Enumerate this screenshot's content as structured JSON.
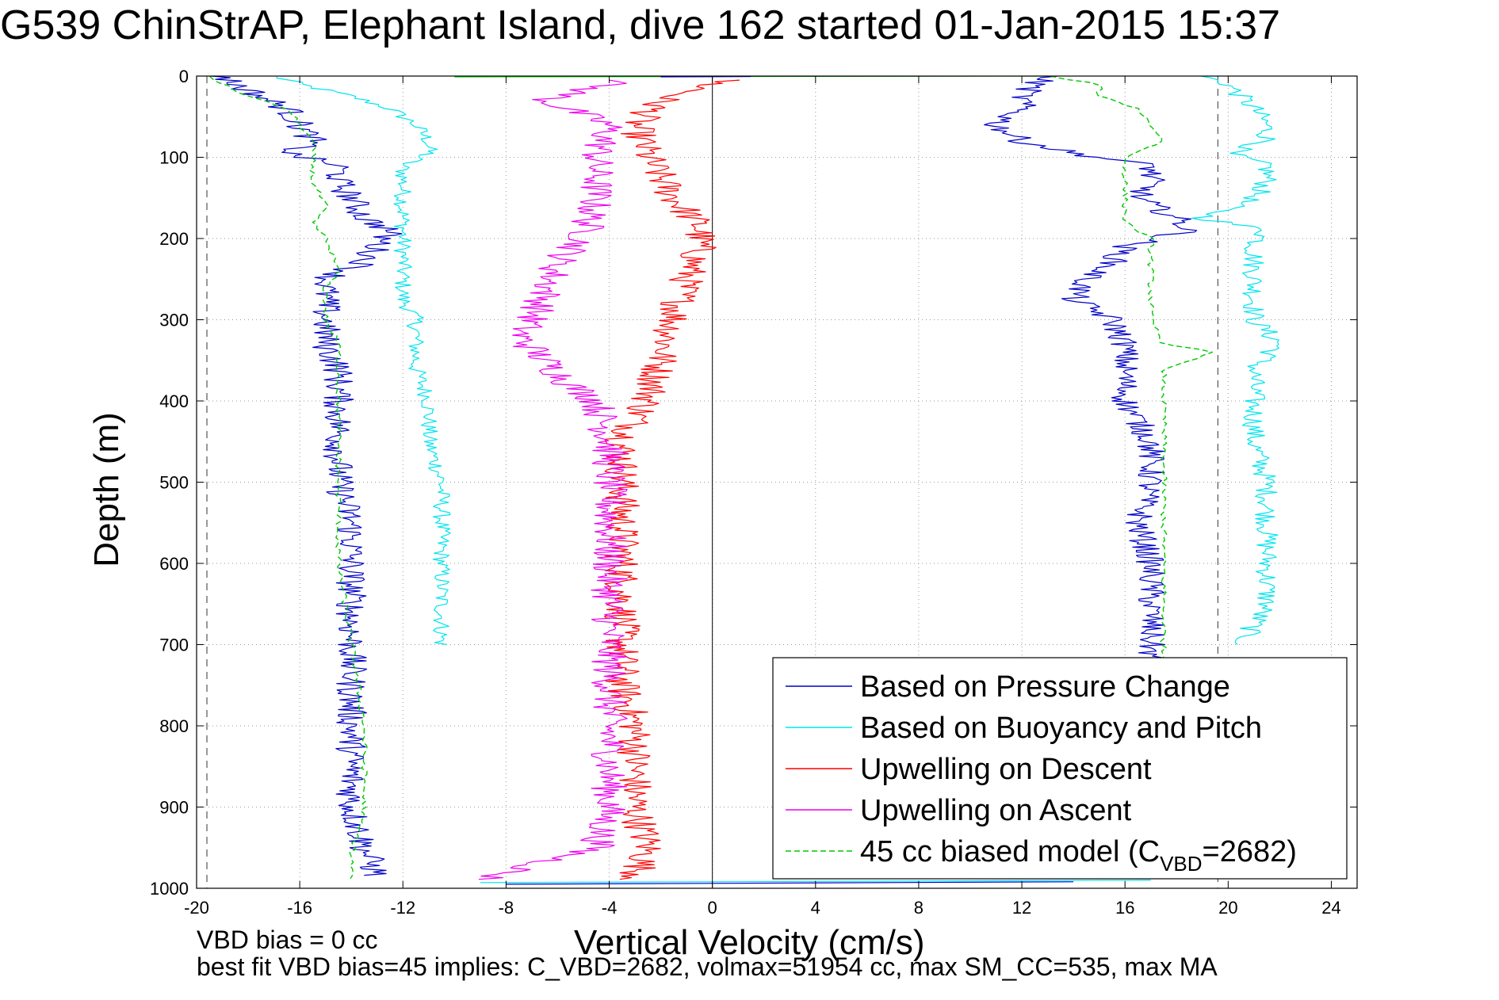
{
  "title": "G539 ChinStrAP, Elephant Island, dive 162 started 01-Jan-2015 15:37",
  "footnotes": {
    "line1": "VBD bias = 0 cc",
    "line2": "best fit VBD bias=45 implies: C_VBD=2682, volmax=51954 cc, max SM_CC=535, max MA"
  },
  "chart_data": {
    "type": "line",
    "xlabel": "Vertical Velocity (cm/s)",
    "ylabel": "Depth (m)",
    "xlim": [
      -20,
      25
    ],
    "ylim": [
      1000,
      0
    ],
    "y_reversed": true,
    "xticks": [
      -20,
      -16,
      -12,
      -8,
      -4,
      0,
      4,
      8,
      12,
      16,
      20,
      24
    ],
    "yticks": [
      0,
      100,
      200,
      300,
      400,
      500,
      600,
      700,
      800,
      900,
      1000
    ],
    "grid": true,
    "grid_style": "dotted",
    "reference_lines": [
      {
        "x": 0,
        "style": "solid"
      },
      {
        "x": -19.6,
        "style": "dashed"
      },
      {
        "x": 19.6,
        "style": "dashed"
      }
    ],
    "legend_position": "bottom-right",
    "series": [
      {
        "name": "Based on Pressure Change",
        "color": "#0000c8",
        "style": "solid",
        "depth": [
          0,
          10,
          25,
          40,
          60,
          80,
          95,
          110,
          130,
          150,
          175,
          190,
          210,
          230,
          250,
          275,
          300,
          330,
          360,
          400,
          450,
          500,
          550,
          600,
          650,
          700,
          750,
          800,
          850,
          900,
          950,
          985,
          995
        ],
        "descent": [
          -19,
          -18.5,
          -17.5,
          -16.5,
          -16,
          -15.5,
          -16.5,
          -14.5,
          -14.5,
          -14,
          -13.5,
          -12.5,
          -13,
          -13.5,
          -15,
          -15,
          -15,
          -15,
          -14.5,
          -14.5,
          -14.5,
          -14.5,
          -14,
          -14,
          -14,
          -14,
          -14,
          -14,
          -14,
          -14,
          -13.5,
          -13,
          0
        ],
        "ascent": [
          13,
          12.5,
          12,
          12,
          11,
          12,
          14,
          17,
          17,
          16.5,
          18,
          18.5,
          16,
          15.5,
          14.5,
          14,
          15.5,
          16,
          16,
          16,
          17,
          17,
          16.5,
          17,
          17,
          17,
          17,
          17,
          17,
          17,
          17,
          17,
          17
        ]
      },
      {
        "name": "Based on Buoyancy and Pitch",
        "color": "#00e5ee",
        "style": "solid",
        "depth": [
          0,
          10,
          25,
          40,
          60,
          80,
          95,
          110,
          130,
          150,
          175,
          190,
          210,
          230,
          250,
          275,
          300,
          330,
          360,
          400,
          450,
          500,
          550,
          600,
          650,
          700
        ],
        "descent": [
          -17,
          -16,
          -14,
          -12.5,
          -11.5,
          -11,
          -11,
          -12,
          -12,
          -12,
          -12,
          -12,
          -12,
          -12,
          -12,
          -12,
          -11.5,
          -11.5,
          -11.5,
          -11,
          -11,
          -10.5,
          -10.5,
          -10.5,
          -10.5,
          -10.5
        ],
        "ascent": [
          19,
          20,
          20.5,
          21,
          21.5,
          21.5,
          20,
          21.5,
          21.5,
          21,
          19,
          21.5,
          21,
          21,
          21,
          21,
          21,
          22,
          21,
          21,
          21,
          21.5,
          21.5,
          21.5,
          21.5,
          20.5
        ]
      },
      {
        "name": "Upwelling on Descent",
        "color": "#ff0000",
        "style": "solid",
        "depth": [
          5,
          30,
          60,
          100,
          150,
          185,
          210,
          250,
          300,
          350,
          400,
          450,
          500,
          550,
          600,
          650,
          700,
          750,
          800,
          850,
          900,
          950,
          990
        ],
        "values": [
          0.5,
          -2,
          -3,
          -2.5,
          -1.5,
          -0.5,
          -0.5,
          -1,
          -1.5,
          -2,
          -2.5,
          -3.5,
          -3.5,
          -3.5,
          -3.5,
          -3.5,
          -3.5,
          -3.5,
          -3,
          -3,
          -3,
          -2.5,
          -3
        ]
      },
      {
        "name": "Upwelling on Ascent",
        "color": "#ee00ee",
        "style": "solid",
        "depth": [
          5,
          30,
          60,
          100,
          150,
          200,
          230,
          270,
          300,
          320,
          350,
          380,
          400,
          450,
          500,
          550,
          600,
          650,
          700,
          750,
          800,
          850,
          900,
          950,
          990
        ],
        "values": [
          -3.5,
          -6.5,
          -4,
          -4.5,
          -4.5,
          -5,
          -6,
          -6.5,
          -7,
          -7.5,
          -6.5,
          -5.5,
          -4.5,
          -4,
          -4,
          -4,
          -4,
          -4,
          -4,
          -4,
          -4,
          -4,
          -4,
          -4.5,
          -9
        ]
      },
      {
        "name": "45 cc biased model (C_VBD=2682)",
        "color": "#00c800",
        "style": "dashed",
        "depth": [
          0,
          10,
          25,
          40,
          60,
          80,
          100,
          130,
          160,
          180,
          200,
          240,
          260,
          300,
          330,
          340,
          360,
          400,
          450,
          500,
          600,
          700,
          800,
          900,
          960,
          990
        ],
        "descent": [
          -19.5,
          -19,
          -18,
          -16.5,
          -16,
          -15.5,
          -15.5,
          -15.5,
          -15,
          -15.5,
          -15,
          -14.5,
          -15,
          -15,
          -14.5,
          -14.5,
          -14.5,
          -14.5,
          -14.5,
          -14.5,
          -14.5,
          -14,
          -13.5,
          -13.5,
          -14,
          -14
        ],
        "ascent": [
          13,
          15,
          15,
          16.5,
          17,
          17.5,
          16,
          16,
          16,
          16,
          17,
          17,
          17,
          17,
          17.5,
          19.5,
          17.5,
          17.5,
          17.5,
          17.5,
          17.5,
          17.5,
          17.5,
          17.5,
          17.5,
          17.5
        ]
      }
    ],
    "legend_entries": [
      {
        "label": "Based on Pressure Change",
        "color": "#0000c8",
        "style": "solid"
      },
      {
        "label": "Based on Buoyancy and Pitch",
        "color": "#00e5ee",
        "style": "solid"
      },
      {
        "label": "Upwelling on Descent",
        "color": "#ff0000",
        "style": "solid"
      },
      {
        "label": "Upwelling on Ascent",
        "color": "#ee00ee",
        "style": "solid"
      },
      {
        "label": "45 cc biased model (C",
        "sub": "VBD",
        "suffix": "=2682)",
        "color": "#00c800",
        "style": "dashed"
      }
    ]
  }
}
